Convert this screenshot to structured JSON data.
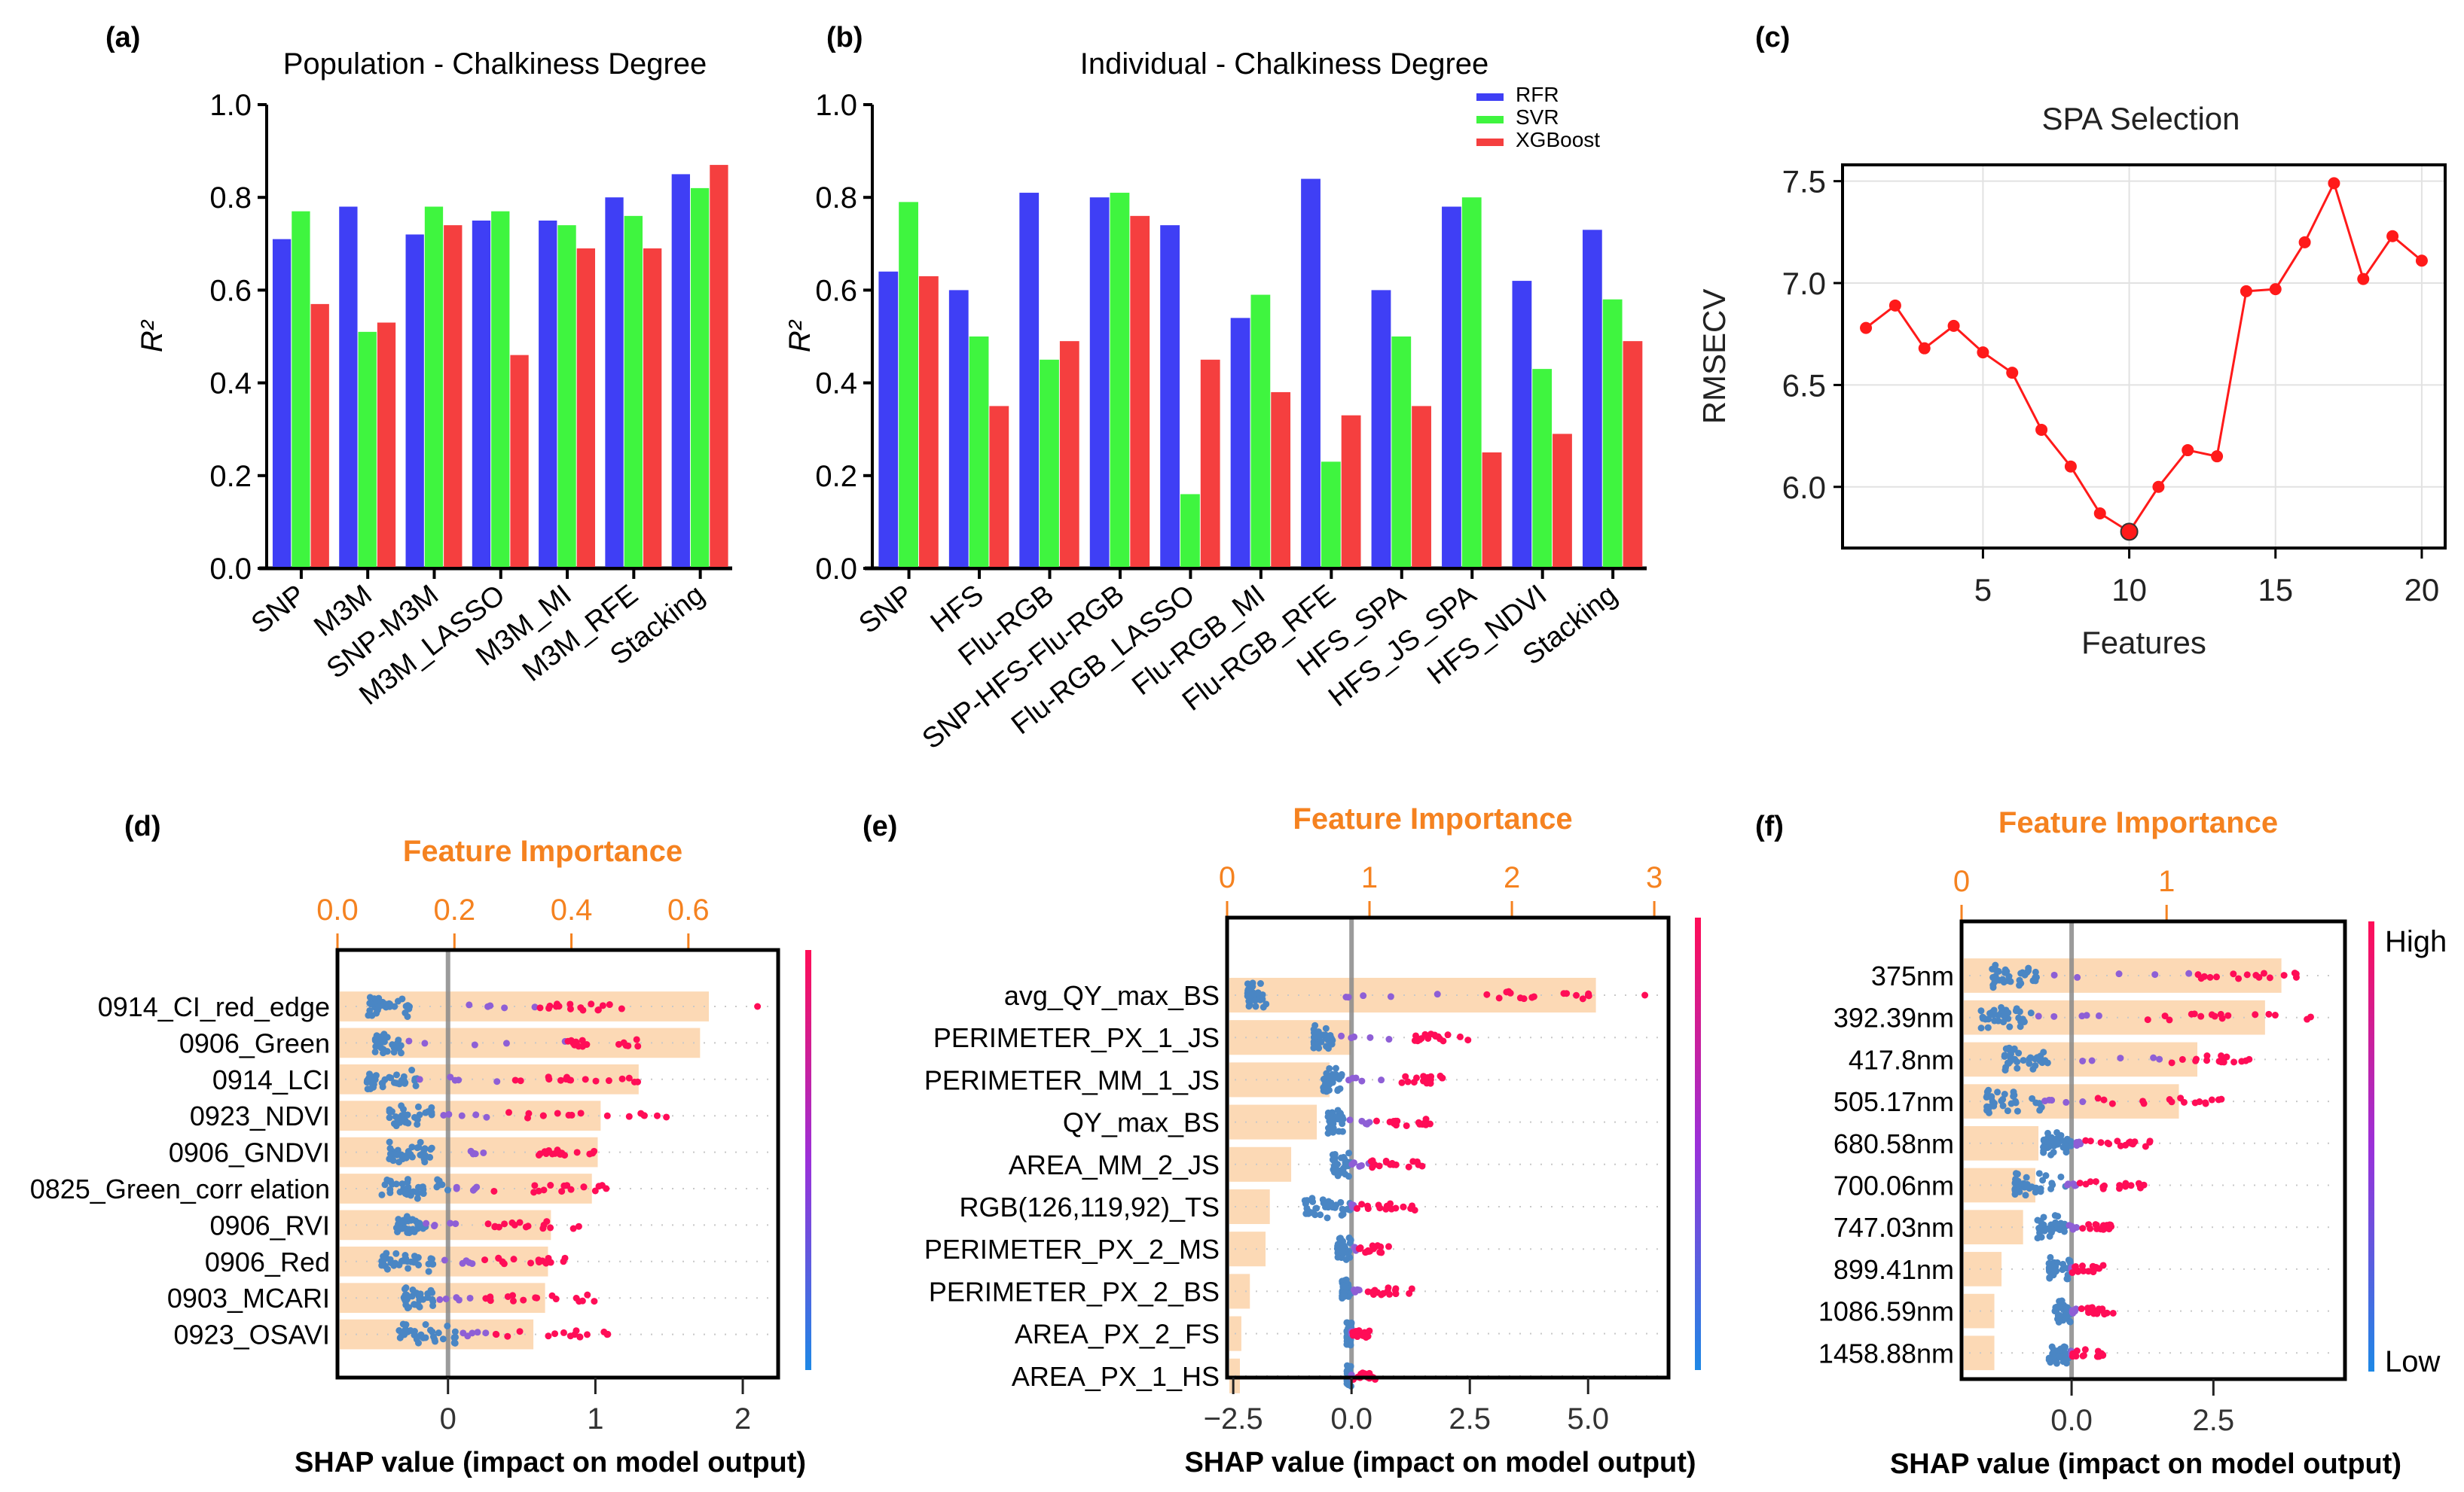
{
  "chart_data": [
    {
      "id": "a",
      "panel_label": "(a)",
      "type": "bar",
      "title": "Population - Chalkiness Degree",
      "ylabel": "R²",
      "xlabel": "",
      "ylim": [
        0,
        1.0
      ],
      "yticks": [
        "0.0",
        "0.2",
        "0.4",
        "0.6",
        "0.8",
        "1.0"
      ],
      "grid": false,
      "categories": [
        "SNP",
        "M3M",
        "SNP-M3M",
        "M3M_LASSO",
        "M3M_MI",
        "M3M_RFE",
        "Stacking"
      ],
      "series": [
        {
          "name": "RFR",
          "color": "#3f3ff5",
          "values": [
            0.71,
            0.78,
            0.72,
            0.75,
            0.75,
            0.8,
            0.85
          ]
        },
        {
          "name": "SVR",
          "color": "#3ff53f",
          "values": [
            0.77,
            0.51,
            0.78,
            0.77,
            0.74,
            0.76,
            0.82
          ]
        },
        {
          "name": "XGBoost",
          "color": "#f53f3f",
          "values": [
            0.57,
            0.53,
            0.74,
            0.46,
            0.69,
            0.69,
            0.87
          ]
        }
      ]
    },
    {
      "id": "b",
      "panel_label": "(b)",
      "type": "bar",
      "title": "Individual - Chalkiness Degree",
      "ylabel": "R²",
      "xlabel": "",
      "ylim": [
        0,
        1.0
      ],
      "yticks": [
        "0.0",
        "0.2",
        "0.4",
        "0.6",
        "0.8",
        "1.0"
      ],
      "grid": false,
      "legend": {
        "placement": "top-right",
        "entries": [
          "RFR",
          "SVR",
          "XGBoost"
        ]
      },
      "categories": [
        "SNP",
        "HFS",
        "Flu-RGB",
        "SNP-HFS-Flu-RGB",
        "Flu-RGB_LASSO",
        "Flu-RGB_MI",
        "Flu-RGB_RFE",
        "HFS_SPA",
        "HFS_JS_SPA",
        "HFS_NDVI",
        "Stacking"
      ],
      "series": [
        {
          "name": "RFR",
          "color": "#3f3ff5",
          "values": [
            0.64,
            0.6,
            0.81,
            0.8,
            0.74,
            0.54,
            0.84,
            0.6,
            0.78,
            0.62,
            0.73
          ]
        },
        {
          "name": "SVR",
          "color": "#3ff53f",
          "values": [
            0.79,
            0.5,
            0.45,
            0.81,
            0.16,
            0.59,
            0.23,
            0.5,
            0.8,
            0.43,
            0.58
          ]
        },
        {
          "name": "XGBoost",
          "color": "#f53f3f",
          "values": [
            0.63,
            0.35,
            0.49,
            0.76,
            0.45,
            0.38,
            0.33,
            0.35,
            0.25,
            0.29,
            0.49
          ]
        }
      ]
    },
    {
      "id": "c",
      "panel_label": "(c)",
      "type": "line",
      "title": "SPA Selection",
      "xlabel": "Features",
      "ylabel": "RMSECV",
      "xlim": [
        0.2,
        20.8
      ],
      "ylim": [
        5.7,
        7.58
      ],
      "xticks": [
        5,
        10,
        15,
        20
      ],
      "yticks": [
        6.0,
        6.5,
        7.0,
        7.5
      ],
      "ytick_labels": [
        "6.0",
        "6.5",
        "7.0",
        "7.5"
      ],
      "grid": true,
      "series": [
        {
          "name": "RMSECV",
          "color": "#ff1a1a",
          "x": [
            1,
            2,
            3,
            4,
            5,
            6,
            7,
            8,
            9,
            10,
            11,
            12,
            13,
            14,
            15,
            16,
            17,
            18,
            19,
            20
          ],
          "y": [
            6.78,
            6.89,
            6.68,
            6.79,
            6.66,
            6.56,
            6.28,
            6.1,
            5.87,
            5.78,
            6.0,
            6.18,
            6.15,
            6.96,
            6.97,
            7.2,
            7.49,
            7.02,
            7.23,
            7.11
          ]
        }
      ],
      "highlight_point": {
        "x": 10,
        "y": 5.78
      }
    },
    {
      "id": "d",
      "panel_label": "(d)",
      "type": "bar",
      "subtype": "shap-summary-with-importance",
      "top_axis_title": "Feature Importance",
      "top_axis_ticks": [
        "0.0",
        "0.2",
        "0.4",
        "0.6"
      ],
      "top_axis_tick_values": [
        0.0,
        0.2,
        0.4,
        0.6
      ],
      "importance_range": [
        0,
        0.7535
      ],
      "xlabel": "SHAP value (impact on model output)",
      "shap_ticks": [
        "0",
        "1",
        "2"
      ],
      "shap_tick_values": [
        0,
        1,
        2
      ],
      "shap_range": [
        -0.75,
        2.24
      ],
      "colorbar": {
        "high": "",
        "low": ""
      },
      "categories": [
        "0914_CI_red_edge",
        "0906_Green",
        "0914_LCI",
        "0923_NDVI",
        "0906_GNDVI",
        "0825_Green_corr elation",
        "0906_RVI",
        "0906_Red",
        "0903_MCARI",
        "0923_OSAVI"
      ],
      "values": [
        0.635,
        0.62,
        0.515,
        0.45,
        0.445,
        0.435,
        0.365,
        0.36,
        0.355,
        0.335
      ],
      "shap_spread": [
        {
          "low": [
            -0.55,
            -0.25
          ],
          "high": [
            0.6,
            1.2
          ],
          "outlier": 2.1
        },
        {
          "low": [
            -0.5,
            -0.3
          ],
          "high": [
            0.8,
            1.3
          ],
          "outlier": null
        },
        {
          "low": [
            -0.55,
            -0.2
          ],
          "high": [
            0.4,
            1.3
          ],
          "outlier": null
        },
        {
          "low": [
            -0.4,
            -0.1
          ],
          "high": [
            0.4,
            1.5
          ],
          "outlier": null
        },
        {
          "low": [
            -0.4,
            -0.1
          ],
          "high": [
            0.6,
            1.0
          ],
          "outlier": null
        },
        {
          "low": [
            -0.45,
            0.0
          ],
          "high": [
            0.3,
            1.15
          ],
          "outlier": null
        },
        {
          "low": [
            -0.35,
            -0.15
          ],
          "high": [
            0.1,
            0.9
          ],
          "outlier": null
        },
        {
          "low": [
            -0.45,
            -0.1
          ],
          "high": [
            0.2,
            0.8
          ],
          "outlier": null
        },
        {
          "low": [
            -0.3,
            -0.1
          ],
          "high": [
            0.2,
            1.0
          ],
          "outlier": null
        },
        {
          "low": [
            -0.35,
            0.1
          ],
          "high": [
            0.3,
            1.1
          ],
          "outlier": null
        }
      ]
    },
    {
      "id": "e",
      "panel_label": "(e)",
      "type": "bar",
      "subtype": "shap-summary-with-importance",
      "top_axis_title": "Feature Importance",
      "top_axis_ticks": [
        "0",
        "1",
        "2",
        "3"
      ],
      "top_axis_tick_values": [
        0,
        1,
        2,
        3
      ],
      "importance_range": [
        0,
        3.1
      ],
      "xlabel": "SHAP value (impact on model output)",
      "shap_ticks": [
        "−2.5",
        "0.0",
        "2.5",
        "5.0"
      ],
      "shap_tick_values": [
        -2.5,
        0.0,
        2.5,
        5.0
      ],
      "shap_range": [
        -2.63,
        6.7
      ],
      "colorbar": {
        "high": "",
        "low": ""
      },
      "categories": [
        "avg_QY_max_BS",
        "PERIMETER_PX_1_JS",
        "PERIMETER_MM_1_JS",
        "QY_max_BS",
        "AREA_MM_2_JS",
        "RGB(126,119,92)_TS",
        "PERIMETER_PX_2_MS",
        "PERIMETER_PX_2_BS",
        "AREA_PX_2_FS",
        "AREA_PX_1_HS"
      ],
      "values": [
        2.59,
        0.87,
        0.72,
        0.63,
        0.45,
        0.3,
        0.27,
        0.16,
        0.1,
        0.09
      ],
      "shap_spread": [
        {
          "low": [
            -2.2,
            -1.8
          ],
          "high": [
            2.8,
            5.1
          ],
          "outlier": 6.2
        },
        {
          "low": [
            -0.8,
            -0.4
          ],
          "high": [
            1.0,
            2.5
          ],
          "outlier": null
        },
        {
          "low": [
            -0.6,
            -0.2
          ],
          "high": [
            1.0,
            2.0
          ],
          "outlier": null
        },
        {
          "low": [
            -0.5,
            -0.1
          ],
          "high": [
            0.4,
            1.7
          ],
          "outlier": null
        },
        {
          "low": [
            -0.4,
            0.0
          ],
          "high": [
            0.4,
            1.5
          ],
          "outlier": null
        },
        {
          "low": [
            -1.0,
            0.0
          ],
          "high": [
            0.1,
            1.4
          ],
          "outlier": null
        },
        {
          "low": [
            -0.3,
            0.0
          ],
          "high": [
            0.1,
            0.8
          ],
          "outlier": null
        },
        {
          "low": [
            -0.2,
            0.0
          ],
          "high": [
            0.2,
            1.3
          ],
          "outlier": null
        },
        {
          "low": [
            -0.1,
            0.0
          ],
          "high": [
            0.0,
            0.4
          ],
          "outlier": null
        },
        {
          "low": [
            -0.1,
            0.0
          ],
          "high": [
            0.0,
            0.5
          ],
          "outlier": null
        }
      ]
    },
    {
      "id": "f",
      "panel_label": "(f)",
      "type": "bar",
      "subtype": "shap-summary-with-importance",
      "top_axis_title": "Feature Importance",
      "top_axis_ticks": [
        "0",
        "1"
      ],
      "top_axis_tick_values": [
        0,
        1
      ],
      "importance_range": [
        0,
        1.87
      ],
      "xlabel": "SHAP value (impact on model output)",
      "shap_ticks": [
        "0.0",
        "2.5"
      ],
      "shap_tick_values": [
        0.0,
        2.5
      ],
      "shap_range": [
        -1.94,
        4.82
      ],
      "colorbar": {
        "high": "High",
        "low": "Low"
      },
      "categories": [
        "375nm",
        "392.39nm",
        "417.8nm",
        "505.17nm",
        "680.58nm",
        "700.06nm",
        "747.03nm",
        "899.41nm",
        "1086.59nm",
        "1458.88nm"
      ],
      "values": [
        1.56,
        1.48,
        1.15,
        1.06,
        0.375,
        0.36,
        0.3,
        0.195,
        0.16,
        0.16
      ],
      "shap_spread": [
        {
          "low": [
            -1.4,
            -0.6
          ],
          "high": [
            2.1,
            4.5
          ],
          "outlier": null
        },
        {
          "low": [
            -1.6,
            -0.7
          ],
          "high": [
            1.0,
            4.3
          ],
          "outlier": null
        },
        {
          "low": [
            -1.2,
            -0.4
          ],
          "high": [
            1.7,
            3.3
          ],
          "outlier": null
        },
        {
          "low": [
            -1.5,
            -0.5
          ],
          "high": [
            0.3,
            2.7
          ],
          "outlier": null
        },
        {
          "low": [
            -0.5,
            0.0
          ],
          "high": [
            0.2,
            1.4
          ],
          "outlier": null
        },
        {
          "low": [
            -1.0,
            -0.1
          ],
          "high": [
            0.1,
            1.4
          ],
          "outlier": null
        },
        {
          "low": [
            -0.6,
            -0.1
          ],
          "high": [
            0.1,
            0.7
          ],
          "outlier": null
        },
        {
          "low": [
            -0.4,
            0.0
          ],
          "high": [
            0.0,
            0.6
          ],
          "outlier": null
        },
        {
          "low": [
            -0.3,
            0.0
          ],
          "high": [
            0.1,
            0.8
          ],
          "outlier": null
        },
        {
          "low": [
            -0.4,
            0.0
          ],
          "high": [
            0.0,
            0.6
          ],
          "outlier": null
        }
      ]
    }
  ],
  "colors": {
    "importance_axis": "#f58220",
    "importance_bar": "#fcd9b5",
    "shap_low": "#1e88e5",
    "shap_high": "#ff0d57",
    "zero_line": "#8a8a8a"
  }
}
